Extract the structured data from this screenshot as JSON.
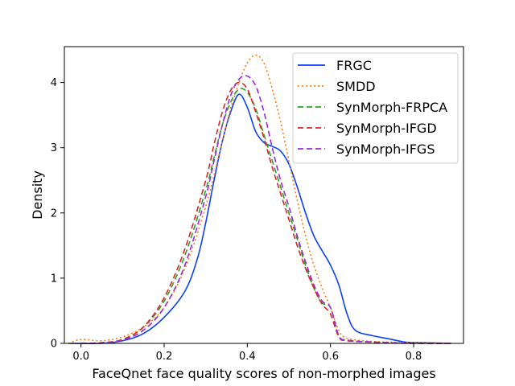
{
  "chart_data": {
    "type": "line",
    "title": "",
    "xlabel": "FaceQnet face quality scores of non-morphed images",
    "ylabel": "Density",
    "xlim": [
      -0.04,
      0.92
    ],
    "ylim": [
      0,
      4.55
    ],
    "xticks": [
      0.0,
      0.2,
      0.4,
      0.6,
      0.8
    ],
    "xtick_labels": [
      "0.0",
      "0.2",
      "0.4",
      "0.6",
      "0.8"
    ],
    "yticks": [
      0,
      1,
      2,
      3,
      4
    ],
    "ytick_labels": [
      "0",
      "1",
      "2",
      "3",
      "4"
    ],
    "grid": false,
    "legend_position": "top-right",
    "series": [
      {
        "name": "FRGC",
        "color": "#0b40f5",
        "style": "solid",
        "x": [
          -0.03,
          0.05,
          0.1,
          0.15,
          0.2,
          0.25,
          0.28,
          0.3,
          0.32,
          0.34,
          0.36,
          0.38,
          0.4,
          0.42,
          0.44,
          0.46,
          0.48,
          0.5,
          0.52,
          0.54,
          0.56,
          0.58,
          0.6,
          0.62,
          0.64,
          0.66,
          0.7,
          0.74,
          0.78,
          0.82,
          0.89
        ],
        "y": [
          0.0,
          0.0,
          0.04,
          0.15,
          0.4,
          0.8,
          1.3,
          1.85,
          2.5,
          3.1,
          3.55,
          3.82,
          3.62,
          3.25,
          3.08,
          3.02,
          2.95,
          2.75,
          2.4,
          2.0,
          1.65,
          1.42,
          1.2,
          0.9,
          0.45,
          0.2,
          0.12,
          0.07,
          0.02,
          0.01,
          0.0
        ]
      },
      {
        "name": "SMDD",
        "color": "#ff7f0e",
        "style": "dotted",
        "x": [
          -0.03,
          0.0,
          0.05,
          0.1,
          0.15,
          0.2,
          0.25,
          0.3,
          0.34,
          0.36,
          0.38,
          0.4,
          0.42,
          0.44,
          0.46,
          0.48,
          0.5,
          0.52,
          0.54,
          0.56,
          0.58,
          0.6,
          0.62,
          0.64,
          0.7,
          0.8,
          0.89
        ],
        "y": [
          0.0,
          0.06,
          0.04,
          0.1,
          0.25,
          0.55,
          1.15,
          2.1,
          3.1,
          3.6,
          4.0,
          4.3,
          4.42,
          4.3,
          3.9,
          3.4,
          2.8,
          2.2,
          1.65,
          1.2,
          0.85,
          0.55,
          0.2,
          0.08,
          0.03,
          0.01,
          0.0
        ]
      },
      {
        "name": "SynMorph-FRPCA",
        "color": "#2ca02c",
        "style": "dashed",
        "x": [
          0.0,
          0.05,
          0.1,
          0.15,
          0.2,
          0.25,
          0.3,
          0.32,
          0.34,
          0.36,
          0.38,
          0.4,
          0.42,
          0.44,
          0.46,
          0.48,
          0.5,
          0.52,
          0.54,
          0.56,
          0.58,
          0.6,
          0.62,
          0.64,
          0.7,
          0.8,
          0.89
        ],
        "y": [
          0.0,
          0.01,
          0.06,
          0.25,
          0.65,
          1.35,
          2.35,
          2.85,
          3.35,
          3.7,
          3.9,
          3.85,
          3.6,
          3.2,
          2.8,
          2.4,
          2.0,
          1.6,
          1.2,
          0.85,
          0.62,
          0.55,
          0.12,
          0.05,
          0.02,
          0.0,
          0.0
        ]
      },
      {
        "name": "SynMorph-IFGD",
        "color": "#d62728",
        "style": "dashed",
        "x": [
          0.0,
          0.05,
          0.1,
          0.15,
          0.2,
          0.25,
          0.3,
          0.32,
          0.34,
          0.36,
          0.38,
          0.4,
          0.42,
          0.44,
          0.46,
          0.48,
          0.5,
          0.52,
          0.54,
          0.56,
          0.58,
          0.6,
          0.62,
          0.64,
          0.7,
          0.8,
          0.89
        ],
        "y": [
          0.0,
          0.01,
          0.06,
          0.25,
          0.7,
          1.45,
          2.5,
          3.05,
          3.55,
          3.88,
          4.0,
          3.9,
          3.55,
          3.15,
          2.7,
          2.3,
          1.9,
          1.5,
          1.15,
          0.85,
          0.6,
          0.45,
          0.1,
          0.04,
          0.02,
          0.0,
          0.0
        ]
      },
      {
        "name": "SynMorph-IFGS",
        "color": "#9a2bd6",
        "style": "dashed",
        "x": [
          0.0,
          0.05,
          0.1,
          0.15,
          0.2,
          0.25,
          0.3,
          0.32,
          0.34,
          0.36,
          0.38,
          0.4,
          0.42,
          0.44,
          0.46,
          0.48,
          0.5,
          0.52,
          0.54,
          0.56,
          0.58,
          0.6,
          0.62,
          0.64,
          0.7,
          0.8,
          0.89
        ],
        "y": [
          0.0,
          0.01,
          0.05,
          0.2,
          0.55,
          1.2,
          2.25,
          2.8,
          3.35,
          3.8,
          4.05,
          4.1,
          3.95,
          3.55,
          3.0,
          2.5,
          2.1,
          1.65,
          1.25,
          0.9,
          0.65,
          0.55,
          0.12,
          0.05,
          0.02,
          0.0,
          0.0
        ]
      }
    ]
  }
}
